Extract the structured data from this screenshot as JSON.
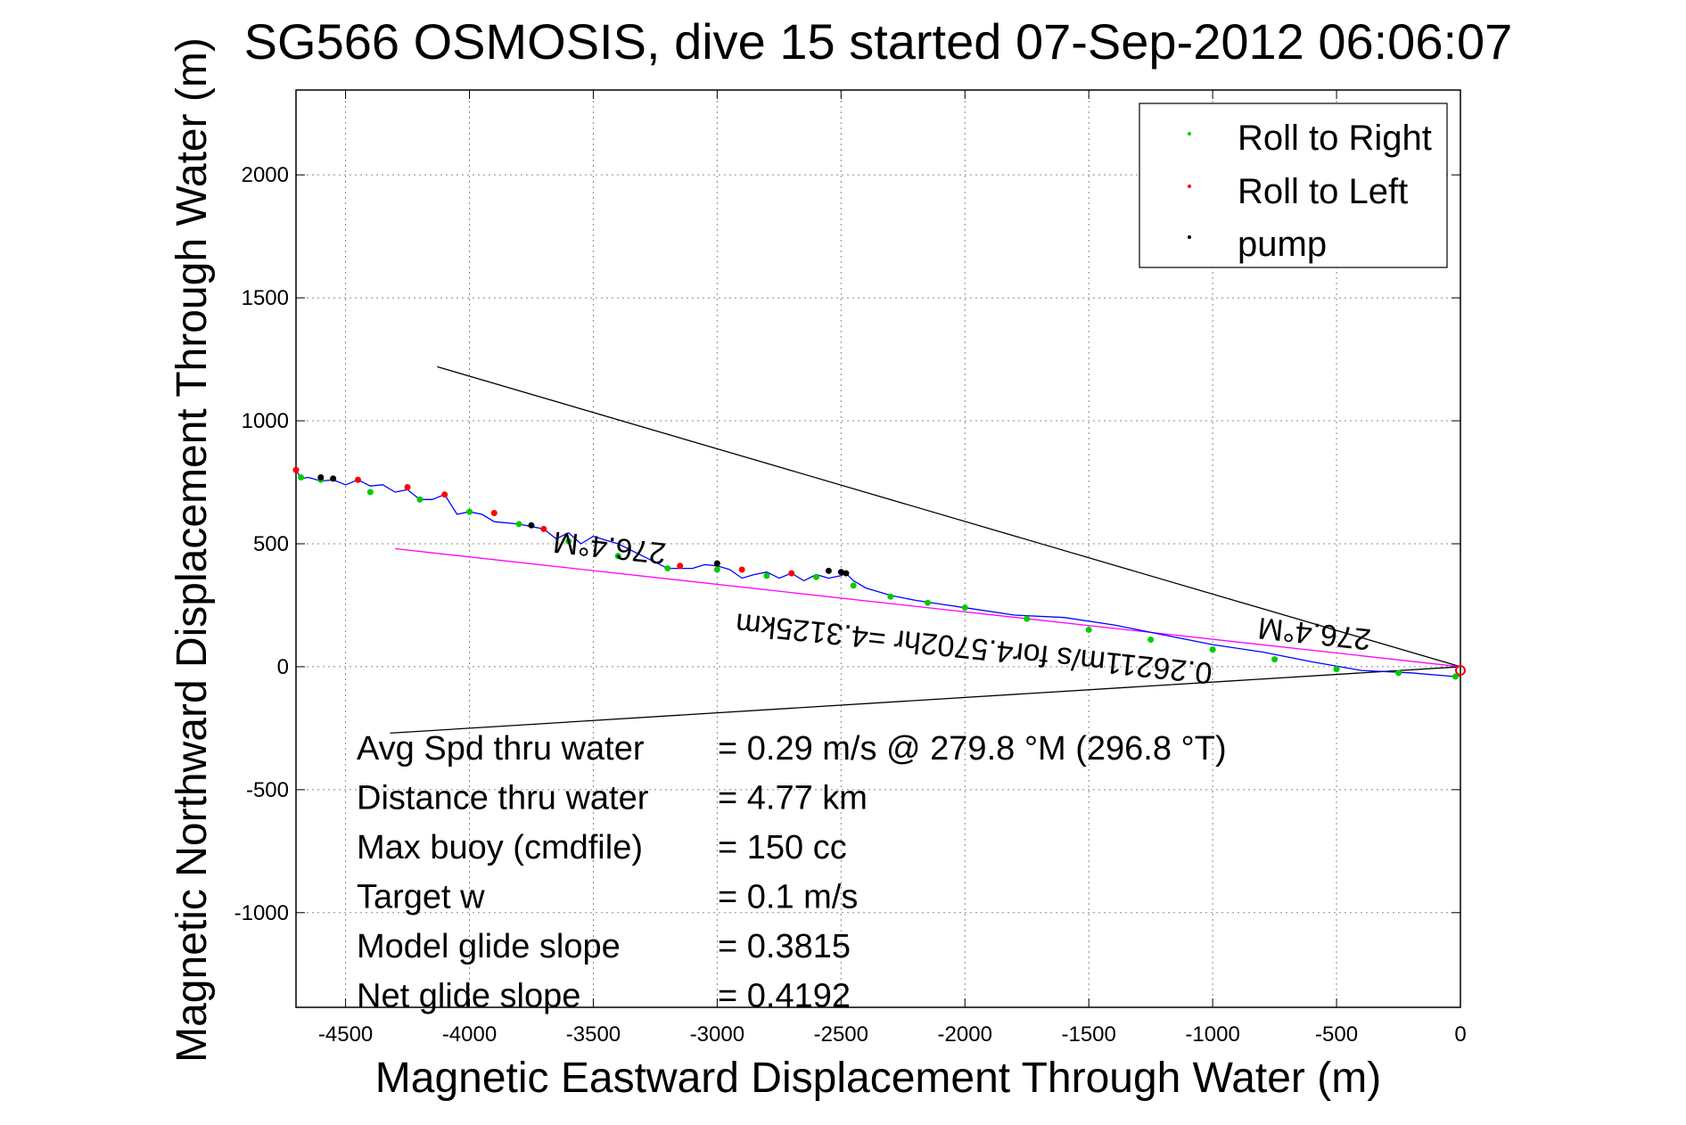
{
  "chart_data": {
    "type": "line",
    "title": "SG566 OSMOSIS, dive 15 started 07-Sep-2012 06:06:07",
    "xlabel": "Magnetic Eastward Displacement Through Water (m)",
    "ylabel": "Magnetic Northward Displacement Through Water (m)",
    "xlim": [
      -4700,
      0
    ],
    "ylim": [
      -1385,
      2345
    ],
    "x_ticks": [
      -4500,
      -4000,
      -3500,
      -3000,
      -2500,
      -2000,
      -1500,
      -1000,
      -500,
      0
    ],
    "y_ticks": [
      -1000,
      -500,
      0,
      500,
      1000,
      1500,
      2000
    ],
    "grid": true,
    "legend_position": "top-right",
    "legend": [
      {
        "label": "Roll to Right",
        "color": "#00cc00"
      },
      {
        "label": "Roll to Left",
        "color": "#ff0000"
      },
      {
        "label": "pump",
        "color": "#000000"
      }
    ],
    "track": {
      "color": "#0000ff",
      "x": [
        0,
        -20,
        -200,
        -400,
        -600,
        -800,
        -1000,
        -1200,
        -1400,
        -1600,
        -1800,
        -2000,
        -2100,
        -2200,
        -2300,
        -2400,
        -2450,
        -2480,
        -2500,
        -2550,
        -2600,
        -2650,
        -2700,
        -2750,
        -2800,
        -2850,
        -2900,
        -2950,
        -3000,
        -3050,
        -3100,
        -3200,
        -3300,
        -3400,
        -3500,
        -3550,
        -3600,
        -3650,
        -3700,
        -3750,
        -3800,
        -3900,
        -3950,
        -4000,
        -4050,
        -4100,
        -4150,
        -4200,
        -4250,
        -4300,
        -4350,
        -4400,
        -4450,
        -4500,
        -4550,
        -4600,
        -4650,
        -4680,
        -4700
      ],
      "y": [
        -35,
        -40,
        -25,
        -15,
        20,
        60,
        90,
        130,
        170,
        200,
        210,
        240,
        255,
        270,
        290,
        320,
        350,
        380,
        370,
        360,
        375,
        350,
        380,
        360,
        385,
        375,
        360,
        395,
        410,
        415,
        400,
        400,
        450,
        500,
        530,
        500,
        545,
        520,
        560,
        570,
        580,
        590,
        620,
        630,
        620,
        700,
        680,
        680,
        720,
        710,
        740,
        735,
        760,
        740,
        760,
        755,
        770,
        765,
        800
      ]
    },
    "roll_right": {
      "color": "#00cc00",
      "x": [
        -20,
        -250,
        -500,
        -750,
        -1000,
        -1250,
        -1500,
        -1750,
        -2000,
        -2150,
        -2300,
        -2450,
        -2600,
        -2800,
        -3000,
        -3200,
        -3400,
        -3600,
        -3800,
        -4000,
        -4200,
        -4400,
        -4600,
        -4680
      ],
      "y": [
        -40,
        -25,
        -10,
        30,
        70,
        110,
        150,
        195,
        240,
        260,
        285,
        330,
        365,
        370,
        395,
        400,
        450,
        510,
        580,
        630,
        680,
        710,
        760,
        770
      ]
    },
    "roll_left": {
      "color": "#ff0000",
      "x": [
        -2700,
        -2900,
        -3150,
        -3700,
        -3900,
        -4100,
        -4250,
        -4450,
        -4700
      ],
      "y": [
        380,
        395,
        410,
        560,
        625,
        700,
        730,
        760,
        800
      ]
    },
    "pump": {
      "color": "#000000",
      "x": [
        -2480,
        -2500,
        -2550,
        -3000,
        -3750,
        -4550,
        -4600
      ],
      "y": [
        380,
        385,
        390,
        420,
        575,
        765,
        770
      ]
    },
    "reference_lines": [
      {
        "name": "upper",
        "color": "#000000",
        "x": [
          0,
          -4130
        ],
        "y": [
          0,
          1220
        ]
      },
      {
        "name": "lower",
        "color": "#000000",
        "x": [
          0,
          -4320
        ],
        "y": [
          0,
          -270
        ]
      },
      {
        "name": "heading",
        "color": "#ff00ff",
        "x": [
          0,
          -4300
        ],
        "y": [
          0,
          480
        ]
      }
    ],
    "annotations": [
      {
        "text": "276.4°M",
        "x": -3430,
        "y": 525,
        "rotation": 186
      },
      {
        "text": "276.4°M",
        "x": -585,
        "y": 175,
        "rotation": 186
      },
      {
        "text": "0.26211m/s for4.5702hr =4.3125km",
        "x": -1960,
        "y": 115,
        "rotation": 186
      }
    ],
    "stats": [
      {
        "label": "Avg Spd thru water",
        "value": "=  0.29 m/s @ 279.8 °M (296.8 °T)"
      },
      {
        "label": "Distance thru water",
        "value": "=  4.77 km"
      },
      {
        "label": "Max buoy (cmdfile)",
        "value": "= 150 cc"
      },
      {
        "label": "Target w",
        "value": "= 0.1 m/s"
      },
      {
        "label": "Model glide slope",
        "value": "= 0.3815"
      },
      {
        "label": "Net glide slope",
        "value": "= 0.4192"
      }
    ]
  }
}
